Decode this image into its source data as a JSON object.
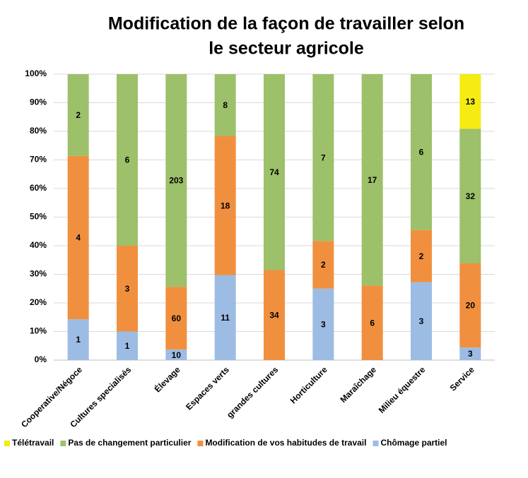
{
  "chart_data": {
    "type": "bar",
    "stacked": true,
    "normalize": true,
    "title": [
      "Modification de la façon de travailler selon",
      "le secteur agricole"
    ],
    "categories": [
      "Cooperative/Négoce",
      "Cultures specialisés",
      "Élevage",
      "Espaces verts",
      "grandes cultures",
      "Horticulture",
      "Maraîchage",
      "Milieu équestre",
      "Service"
    ],
    "series": [
      {
        "name": "Chômage partiel",
        "color": "#9dbce4",
        "values": [
          1,
          1,
          10,
          11,
          null,
          3,
          null,
          3,
          3
        ]
      },
      {
        "name": "Modification de vos habitudes de travail",
        "color": "#f0903f",
        "values": [
          4,
          3,
          60,
          18,
          34,
          2,
          6,
          2,
          20
        ]
      },
      {
        "name": "Pas de changement particulier",
        "color": "#9dc06a",
        "values": [
          2,
          6,
          203,
          8,
          74,
          7,
          17,
          6,
          32
        ]
      },
      {
        "name": "Télétravail",
        "color": "#f4ec12",
        "values": [
          null,
          null,
          null,
          null,
          null,
          null,
          null,
          null,
          13
        ]
      }
    ],
    "legend_order": [
      3,
      2,
      1,
      0
    ],
    "ylim": [
      0,
      100
    ],
    "yticks": [
      {
        "value": 0,
        "label": "0%"
      },
      {
        "value": 10,
        "label": "10%"
      },
      {
        "value": 20,
        "label": "20%"
      },
      {
        "value": 30,
        "label": "30%"
      },
      {
        "value": 40,
        "label": "40%"
      },
      {
        "value": 50,
        "label": "50%"
      },
      {
        "value": 60,
        "label": "60%"
      },
      {
        "value": 70,
        "label": "70%"
      },
      {
        "value": 80,
        "label": "80%"
      },
      {
        "value": 90,
        "label": "90%"
      },
      {
        "value": 100,
        "label": "100%"
      }
    ],
    "grid": true
  }
}
